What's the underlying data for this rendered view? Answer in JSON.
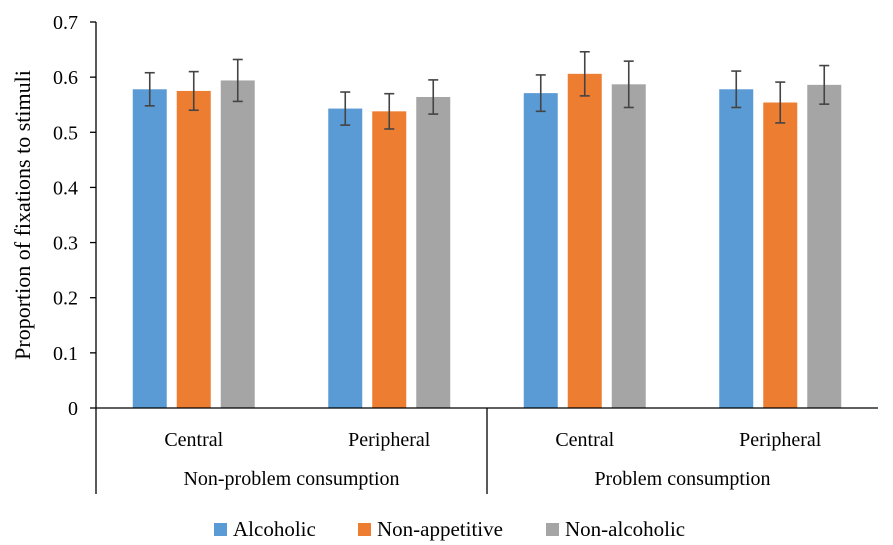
{
  "chart_data": {
    "type": "bar",
    "ylabel": "Proportion of fixations to stimuli",
    "ylim": [
      0,
      0.7
    ],
    "yticks": [
      "0",
      "0.1",
      "0.2",
      "0.3",
      "0.4",
      "0.5",
      "0.6",
      "0.7"
    ],
    "groups": [
      {
        "label": "Non-problem consumption",
        "categories": [
          "Central",
          "Peripheral"
        ]
      },
      {
        "label": "Problem consumption",
        "categories": [
          "Central",
          "Peripheral"
        ]
      }
    ],
    "categories": [
      "Central",
      "Peripheral",
      "Central",
      "Peripheral"
    ],
    "series": [
      {
        "name": "Alcoholic",
        "color": "#5B9BD5",
        "values": [
          0.578,
          0.543,
          0.571,
          0.578
        ],
        "error": [
          0.03,
          0.03,
          0.033,
          0.033
        ]
      },
      {
        "name": "Non-appetitive",
        "color": "#ED7D31",
        "values": [
          0.575,
          0.538,
          0.606,
          0.554
        ],
        "error": [
          0.035,
          0.032,
          0.04,
          0.037
        ]
      },
      {
        "name": "Non-alcoholic",
        "color": "#A5A5A5",
        "values": [
          0.594,
          0.564,
          0.587,
          0.586
        ],
        "error": [
          0.038,
          0.031,
          0.042,
          0.035
        ]
      }
    ],
    "legend": "bottom",
    "grid": false
  }
}
